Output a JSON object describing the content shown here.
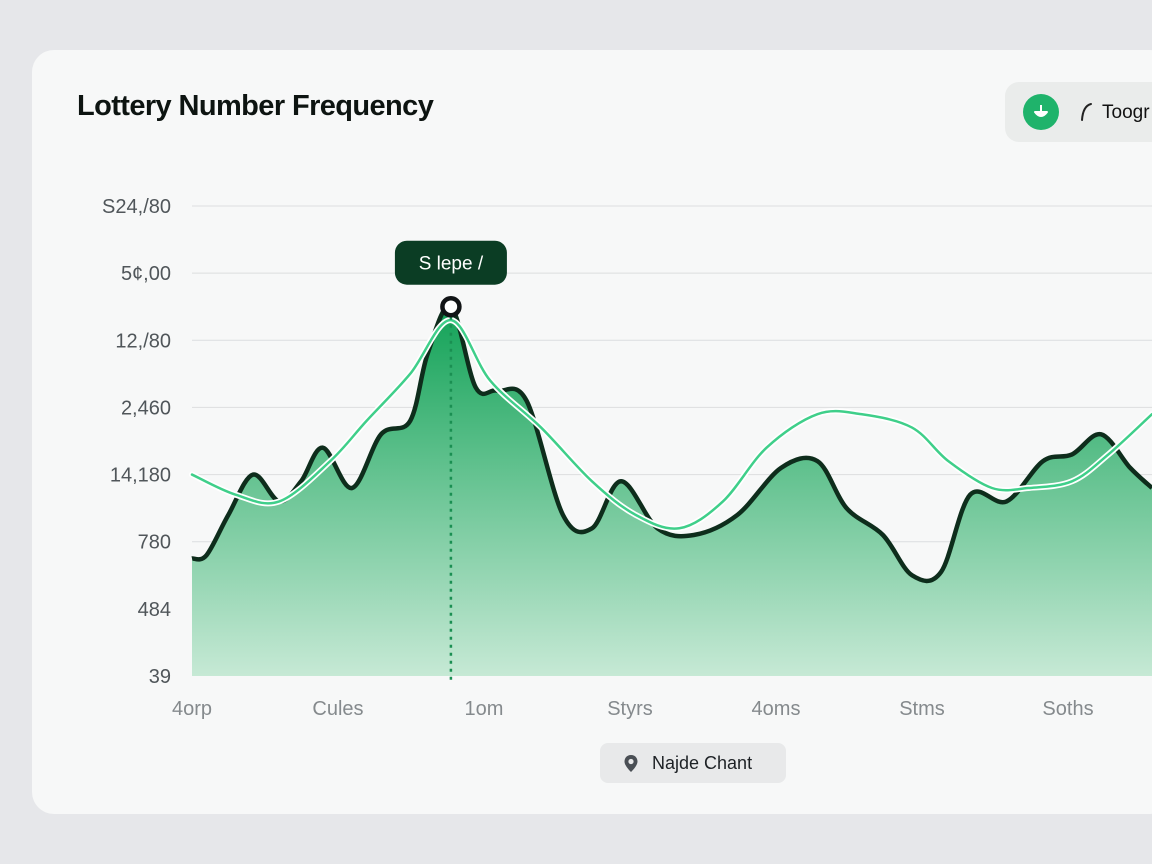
{
  "header": {
    "title": "Lottery Number Frequency",
    "toggle_label": "Toogr"
  },
  "tooltip": {
    "label": "S lepe /"
  },
  "legend": {
    "label": "Najde Chant",
    "icon": "location-pin-icon"
  },
  "colors": {
    "area_top": "#12a257",
    "area_bottom": "#c6e9d5",
    "area_outline": "#0e2d1c",
    "line": "#3fcf8a",
    "tooltip_bg": "#0b3d24",
    "accent": "#1fb36b"
  },
  "chart_data": {
    "type": "area",
    "title": "Lottery Number Frequency",
    "y_tick_labels": [
      "S24,/80",
      "5¢,00",
      "12,/80",
      "2,460",
      "14,180",
      "780",
      "484",
      "39"
    ],
    "x_tick_labels": [
      "4orp",
      "Cules",
      "1om",
      "Styrs",
      "4oms",
      "Stms",
      "Soths"
    ],
    "x_range": [
      0,
      6.6
    ],
    "y_range": [
      0,
      7
    ],
    "grid": true,
    "legend_position": "bottom-center",
    "series": [
      {
        "style": "filled-area",
        "points": [
          [
            0,
            1.75
          ],
          [
            0.1,
            1.8
          ],
          [
            0.25,
            2.4
          ],
          [
            0.42,
            3.0
          ],
          [
            0.6,
            2.6
          ],
          [
            0.75,
            2.9
          ],
          [
            0.9,
            3.4
          ],
          [
            1.1,
            2.8
          ],
          [
            1.3,
            3.6
          ],
          [
            1.5,
            3.8
          ],
          [
            1.62,
            4.8
          ],
          [
            1.78,
            5.5
          ],
          [
            1.95,
            4.3
          ],
          [
            2.1,
            4.25
          ],
          [
            2.3,
            4.1
          ],
          [
            2.55,
            2.4
          ],
          [
            2.75,
            2.2
          ],
          [
            2.95,
            2.9
          ],
          [
            3.2,
            2.2
          ],
          [
            3.45,
            2.1
          ],
          [
            3.75,
            2.4
          ],
          [
            4.05,
            3.1
          ],
          [
            4.3,
            3.2
          ],
          [
            4.5,
            2.5
          ],
          [
            4.75,
            2.1
          ],
          [
            4.95,
            1.5
          ],
          [
            5.15,
            1.55
          ],
          [
            5.35,
            2.7
          ],
          [
            5.6,
            2.6
          ],
          [
            5.85,
            3.2
          ],
          [
            6.05,
            3.3
          ],
          [
            6.25,
            3.6
          ],
          [
            6.45,
            3.1
          ],
          [
            6.6,
            2.8
          ]
        ]
      },
      {
        "style": "line",
        "points": [
          [
            0,
            3.0
          ],
          [
            0.3,
            2.7
          ],
          [
            0.6,
            2.6
          ],
          [
            0.95,
            3.2
          ],
          [
            1.2,
            3.8
          ],
          [
            1.5,
            4.5
          ],
          [
            1.78,
            5.3
          ],
          [
            2.05,
            4.4
          ],
          [
            2.4,
            3.7
          ],
          [
            2.75,
            2.9
          ],
          [
            3.05,
            2.4
          ],
          [
            3.35,
            2.2
          ],
          [
            3.65,
            2.6
          ],
          [
            3.95,
            3.4
          ],
          [
            4.3,
            3.9
          ],
          [
            4.6,
            3.9
          ],
          [
            4.95,
            3.7
          ],
          [
            5.2,
            3.2
          ],
          [
            5.5,
            2.8
          ],
          [
            5.75,
            2.8
          ],
          [
            6.05,
            2.9
          ],
          [
            6.3,
            3.3
          ],
          [
            6.6,
            3.9
          ]
        ]
      }
    ],
    "highlight": {
      "x": 1.78,
      "y": 5.5,
      "label": "S lepe /"
    }
  }
}
